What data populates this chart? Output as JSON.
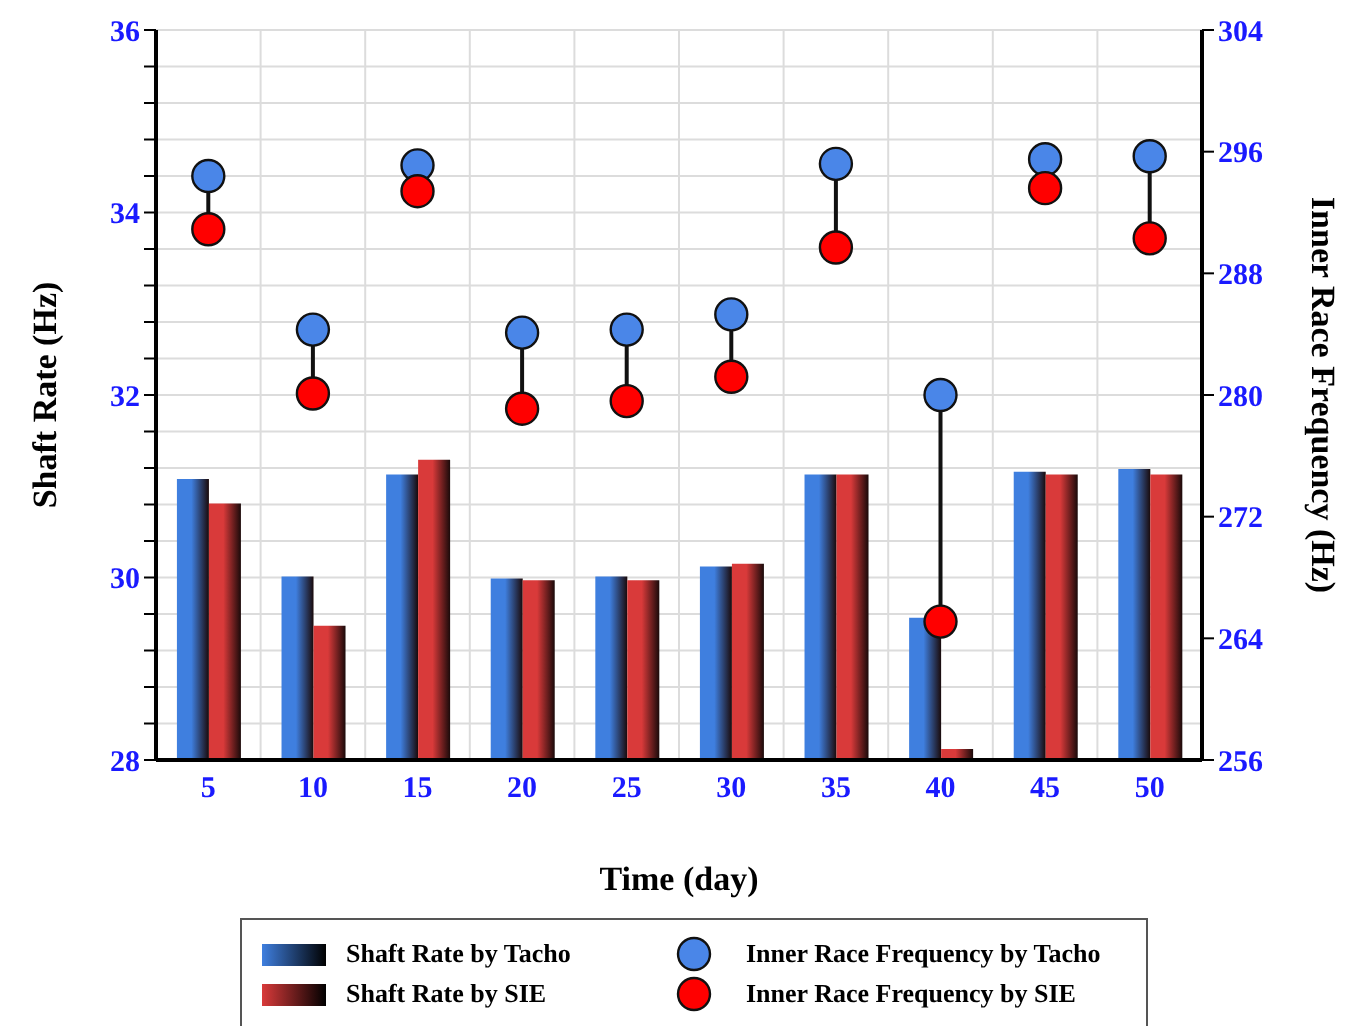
{
  "chart_data": {
    "type": "bar",
    "xlabel": "Time (day)",
    "ylabel": "Shaft Rate (Hz)",
    "y2label": "Inner Race Frequency (Hz)",
    "categories": [
      "5",
      "10",
      "15",
      "20",
      "25",
      "30",
      "35",
      "40",
      "45",
      "50"
    ],
    "series": [
      {
        "name": "Shaft Rate by Tacho",
        "color": "#3f7fdf",
        "values": [
          31.08,
          30.01,
          31.13,
          29.99,
          30.01,
          30.12,
          31.13,
          29.56,
          31.16,
          31.19
        ]
      },
      {
        "name": "Shaft Rate by SIE",
        "color": "#d93a3a",
        "values": [
          30.81,
          29.47,
          31.29,
          29.97,
          29.97,
          30.15,
          31.13,
          28.12,
          31.13,
          31.13
        ]
      },
      {
        "name": "Inner Race Frequency by Tacho",
        "type": "scatter",
        "axis": "y2",
        "color": "#4a86e8",
        "values": [
          294.4,
          284.3,
          295.1,
          284.1,
          284.3,
          285.3,
          295.2,
          280.0,
          295.5,
          295.7
        ]
      },
      {
        "name": "Inner Race Frequency by SIE",
        "type": "scatter",
        "axis": "y2",
        "color": "#ff0000",
        "values": [
          290.9,
          280.1,
          293.4,
          279.1,
          279.6,
          281.2,
          289.7,
          265.1,
          293.6,
          290.3
        ]
      }
    ],
    "ylim": [
      28,
      36
    ],
    "yticks": [
      28,
      {
        "value": 28.4,
        "label": null
      },
      {
        "value": 28.8,
        "label": null
      },
      {
        "value": 29.2,
        "label": null
      },
      {
        "value": 29.6,
        "label": null
      },
      30,
      {
        "value": 30.4,
        "label": null
      },
      {
        "value": 30.8,
        "label": null
      },
      {
        "value": 31.2,
        "label": null
      },
      {
        "value": 31.6,
        "label": null
      },
      32,
      {
        "value": 32.4,
        "label": null
      },
      {
        "value": 32.8,
        "label": null
      },
      {
        "value": 33.2,
        "label": null
      },
      {
        "value": 33.6,
        "label": null
      },
      34,
      {
        "value": 34.4,
        "label": null
      },
      {
        "value": 34.8,
        "label": null
      },
      {
        "value": 35.2,
        "label": null
      },
      {
        "value": 35.6,
        "label": null
      },
      36
    ],
    "y2lim": [
      256,
      304
    ],
    "y2ticks": [
      256,
      264,
      272,
      280,
      288,
      296,
      304
    ],
    "grid": true,
    "legend": "bottom",
    "marker": "circle"
  }
}
